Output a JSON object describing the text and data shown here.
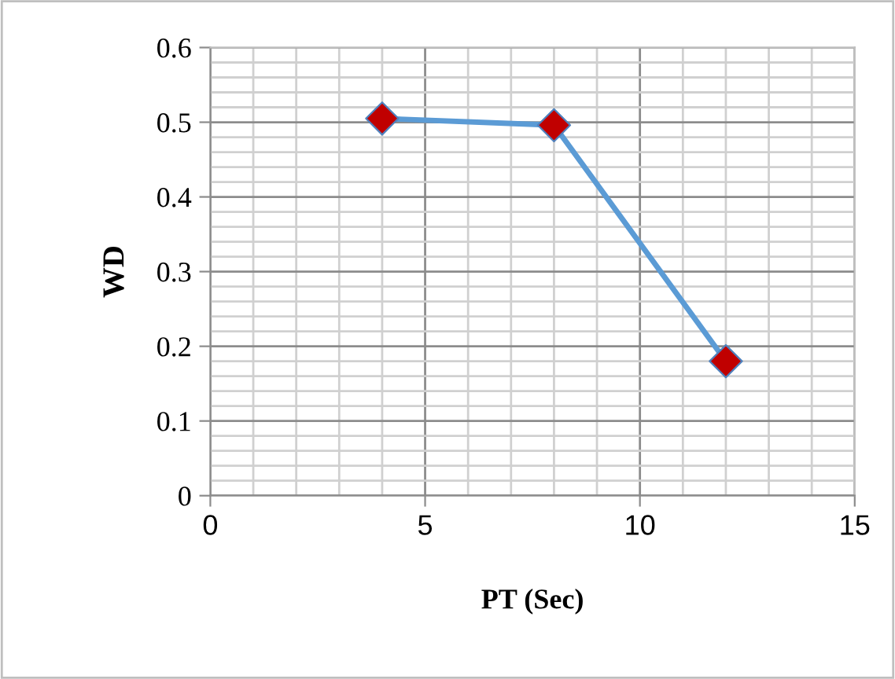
{
  "chart_data": {
    "type": "line",
    "xlabel": "PT (Sec)",
    "ylabel": "WD",
    "x": [
      4,
      8,
      12
    ],
    "series": [
      {
        "color": "#5b9bd5",
        "colors": [
          "#c00000",
          "#c00000",
          "#c00000"
        ],
        "values": [
          0.505,
          0.496,
          0.18
        ]
      }
    ],
    "xlim": [
      0,
      15
    ],
    "xticks": [
      0,
      5,
      10,
      15
    ],
    "ylim": [
      0,
      0.6
    ],
    "yticks": [
      0,
      0.1,
      0.2,
      0.3,
      0.4,
      0.5,
      0.6
    ],
    "grid": true,
    "marker": "diamond",
    "line_style": "solid"
  }
}
